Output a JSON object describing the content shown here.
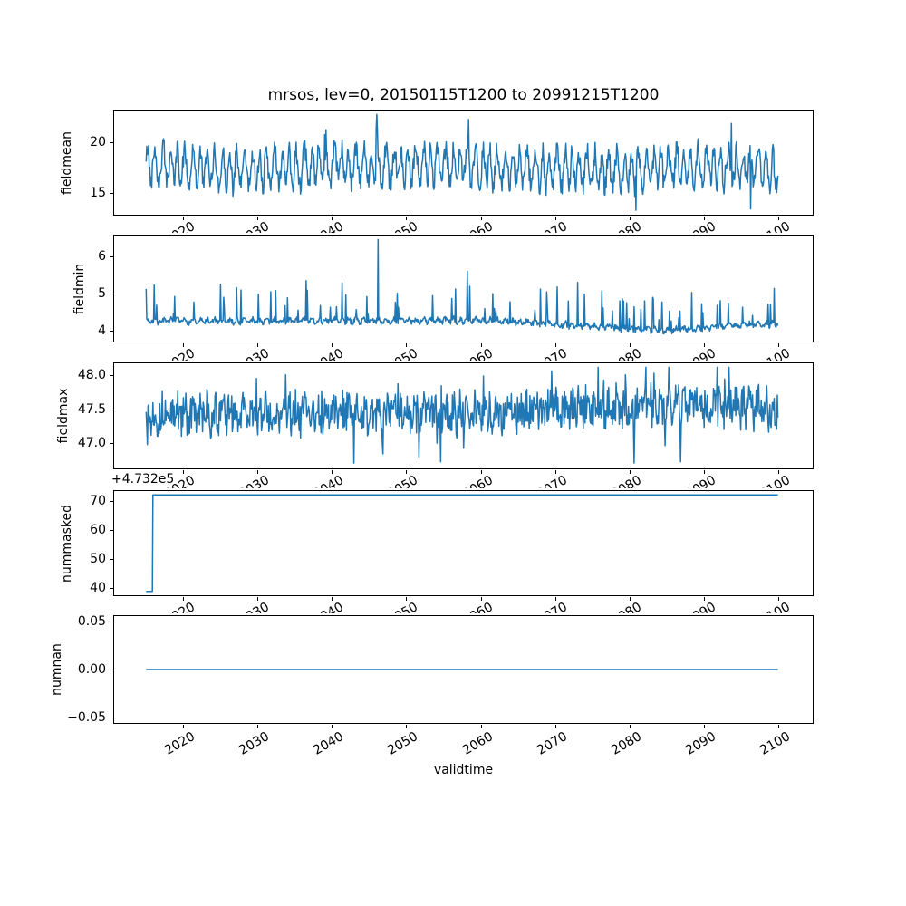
{
  "line_color": "#1f77b4",
  "text_color": "#000000",
  "background_color": "#ffffff",
  "chart_data": {
    "type": "line",
    "title": "mrsos, lev=0, 20150115T1200 to 20991215T1200",
    "xlabel": "validtime",
    "legend": "none",
    "grid": false,
    "x_range": {
      "start": 2015.042,
      "end": 2099.958
    },
    "xlim": [
      2010.62,
      2104.75
    ],
    "xticks": [
      {
        "v": 2020,
        "label": "2020"
      },
      {
        "v": 2030,
        "label": "2030"
      },
      {
        "v": 2040,
        "label": "2040"
      },
      {
        "v": 2050,
        "label": "2050"
      },
      {
        "v": 2060,
        "label": "2060"
      },
      {
        "v": 2070,
        "label": "2070"
      },
      {
        "v": 2080,
        "label": "2080"
      },
      {
        "v": 2090,
        "label": "2090"
      },
      {
        "v": 2100,
        "label": "2100"
      }
    ],
    "xtick_rotation_deg": 30,
    "panels": [
      {
        "ylabel": "fieldmean",
        "ylim": [
          12.72,
          23.28
        ],
        "yticks": [
          {
            "v": 20,
            "label": "20"
          },
          {
            "v": 15,
            "label": "15"
          }
        ],
        "summary": {
          "approx_min": 13.2,
          "approx_max": 22.8,
          "approx_mean": 17.5,
          "note": "dense monthly oscillation ~15-20.5, peak 22.8 near 2046, low 13.2 near 2081"
        },
        "series": {
          "kind": "noisy",
          "seed": 42,
          "n": 1020,
          "base": 17.55,
          "season_amp": 1.7,
          "season_period": 12,
          "phase_wobble": 0.7,
          "noise_amp": 1.05,
          "spike_prob": 0.01,
          "spike_amp_min": 1.2,
          "spike_amp_max": 2.4,
          "spike_sign": "both",
          "drift": [
            [
              0,
              0.35
            ],
            [
              0.12,
              -0.3
            ],
            [
              0.3,
              0.1
            ],
            [
              0.45,
              0.2
            ],
            [
              0.55,
              -0.1
            ],
            [
              0.75,
              -0.3
            ],
            [
              0.88,
              0.15
            ],
            [
              1,
              -0.2
            ]
          ],
          "clamp_min": 13.2,
          "clamp_max": 22.8,
          "events": {
            "371": 21.4,
            "372": 22.8,
            "373": 21.2,
            "520": 22.3,
            "790": 13.25,
            "944": 21.9,
            "975": 13.4
          }
        }
      },
      {
        "ylabel": "fieldmin",
        "ylim": [
          3.6885,
          6.5815
        ],
        "yticks": [
          {
            "v": 6,
            "label": "6"
          },
          {
            "v": 5,
            "label": "5"
          },
          {
            "v": 4,
            "label": "4"
          }
        ],
        "summary": {
          "approx_min": 3.82,
          "approx_max": 6.45,
          "approx_mean": 4.3,
          "note": "baseline ~4.1-4.4 with upward spikes to 5-5.6, single peak 6.45 near 2046, slight decline after 2070"
        },
        "series": {
          "kind": "noisy",
          "seed": 7,
          "n": 1020,
          "base": 4.26,
          "season_amp": 0.05,
          "season_period": 12,
          "phase_wobble": 0.5,
          "noise_amp": 0.07,
          "spike_prob": 0.085,
          "spike_amp_min": 0.25,
          "spike_amp_max": 0.95,
          "spike_sign": "up",
          "drift": [
            [
              0,
              0
            ],
            [
              0.55,
              0.02
            ],
            [
              0.72,
              -0.15
            ],
            [
              0.82,
              -0.25
            ],
            [
              0.92,
              -0.12
            ],
            [
              1,
              -0.08
            ]
          ],
          "clamp_min": 3.82,
          "clamp_max": 6.45,
          "events": {
            "120": 5.25,
            "258": 5.35,
            "374": 6.45,
            "518": 5.6,
            "696": 5.3,
            "707": 4.98
          }
        }
      },
      {
        "ylabel": "fieldmax",
        "ylim": [
          46.608,
          48.192
        ],
        "yticks": [
          {
            "v": 48.0,
            "label": "48.0"
          },
          {
            "v": 47.5,
            "label": "47.5"
          },
          {
            "v": 47.0,
            "label": "47.0"
          }
        ],
        "summary": {
          "approx_min": 46.68,
          "approx_max": 48.12,
          "approx_mean": 47.45,
          "note": "dense noise around 47.4-47.5 with dips to ~46.7 and peaks to ~48.1"
        },
        "series": {
          "kind": "noisy",
          "seed": 13,
          "n": 1020,
          "base": 47.42,
          "season_amp": 0.1,
          "season_period": 12,
          "phase_wobble": 0.9,
          "noise_amp": 0.28,
          "spike_prob": 0.02,
          "spike_amp_min": 0.25,
          "spike_amp_max": 0.6,
          "spike_sign": "both",
          "drift": [
            [
              0,
              0
            ],
            [
              0.5,
              0.02
            ],
            [
              0.68,
              0.1
            ],
            [
              0.85,
              0.14
            ],
            [
              1,
              0.08
            ]
          ],
          "clamp_min": 46.68,
          "clamp_max": 48.12,
          "events": {
            "335": 46.7,
            "475": 46.72,
            "806": 48.12,
            "862": 46.72
          }
        }
      },
      {
        "ylabel": "nummasked",
        "offset_text": "+4.732e5",
        "ylim": [
          473237.35,
          473273.65
        ],
        "yticks": [
          {
            "v": 473270,
            "label": "70"
          },
          {
            "v": 473260,
            "label": "60"
          },
          {
            "v": 473250,
            "label": "50"
          },
          {
            "v": 473240,
            "label": "40"
          }
        ],
        "summary": {
          "approx_min": 473239,
          "approx_max": 473272,
          "note": "starts at 473239 in 2015, steps up to 473272 by ~2016 and stays constant to 2100"
        },
        "series": {
          "kind": "points",
          "points": [
            [
              2015.042,
              473239
            ],
            [
              2015.875,
              473239
            ],
            [
              2015.958,
              473272
            ],
            [
              2099.958,
              473272
            ]
          ]
        }
      },
      {
        "ylabel": "numnan",
        "ylim": [
          -0.0567,
          0.0567
        ],
        "yticks": [
          {
            "v": 0.05,
            "label": "0.05"
          },
          {
            "v": 0.0,
            "label": "0.00"
          },
          {
            "v": -0.05,
            "label": "−0.05"
          }
        ],
        "summary": {
          "constant_value": 0,
          "note": "flat zero line for entire period"
        },
        "series": {
          "kind": "points",
          "points": [
            [
              2015.042,
              0
            ],
            [
              2099.958,
              0
            ]
          ]
        }
      }
    ]
  }
}
